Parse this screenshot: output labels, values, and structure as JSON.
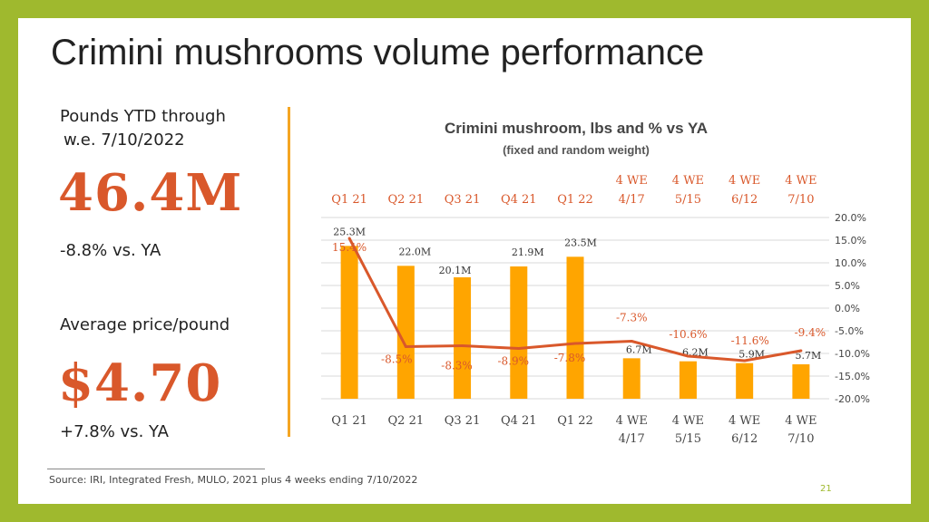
{
  "page": {
    "title": "Crimini mushrooms volume performance",
    "page_number": "21",
    "source": "Source: IRI, Integrated Fresh, MULO, 2021 plus 4 weeks ending 7/10/2022"
  },
  "kpis": {
    "volume_label_line1": "Pounds YTD through",
    "volume_label_line2": "w.e. 7/10/2022",
    "volume_value": "46.4M",
    "volume_change": "-8.8% vs. YA",
    "price_label": "Average price/pound",
    "price_value": "$4.70",
    "price_change": "+7.8% vs. YA"
  },
  "colors": {
    "background": "#9fb92e",
    "accent_orange": "#d9582b",
    "bar": "#ffa500",
    "line": "#d9582b",
    "divider": "#f5a623"
  },
  "chart_data": {
    "type": "bar",
    "title": "Crimini mushroom, lbs and % vs YA",
    "subtitle": "(fixed and random weight)",
    "categories": [
      [
        "Q1 21"
      ],
      [
        "Q2 21"
      ],
      [
        "Q3 21"
      ],
      [
        "Q4 21"
      ],
      [
        "Q1 22"
      ],
      [
        "4 WE",
        "4/17"
      ],
      [
        "4 WE",
        "5/15"
      ],
      [
        "4 WE",
        "6/12"
      ],
      [
        "4 WE",
        "7/10"
      ]
    ],
    "series": [
      {
        "type": "bar",
        "axis": "left",
        "values": [
          25.3,
          22.0,
          20.1,
          21.9,
          23.5,
          6.7,
          6.2,
          5.9,
          5.7
        ],
        "labels": [
          "25.3M",
          "22.0M",
          "20.1M",
          "21.9M",
          "23.5M",
          "6.7M",
          "6.2M",
          "5.9M",
          "5.7M"
        ]
      },
      {
        "type": "line",
        "axis": "right",
        "values": [
          15.4,
          -8.5,
          -8.3,
          -8.9,
          -7.8,
          -7.3,
          -10.6,
          -11.6,
          -9.4
        ],
        "labels": [
          "15.4%",
          "-8.5%",
          "-8.3%",
          "-8.9%",
          "-7.8%",
          "-7.3%",
          "-10.6%",
          "-11.6%",
          "-9.4%"
        ]
      }
    ],
    "right_axis": {
      "min": -20,
      "max": 20,
      "step": 5,
      "tick_labels": [
        "20.0%",
        "15.0%",
        "10.0%",
        "5.0%",
        "0.0%",
        "-5.0%",
        "-10.0%",
        "-15.0%",
        "-20.0%"
      ]
    },
    "left_axis": {
      "min": 0,
      "max": 30,
      "visible": false
    },
    "grid": true,
    "top_category_labels": true
  }
}
